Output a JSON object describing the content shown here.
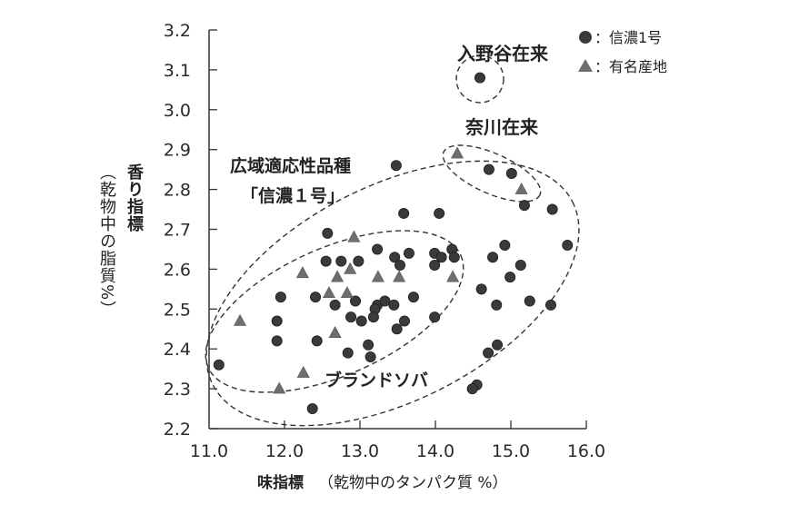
{
  "chart_data": {
    "type": "scatter",
    "title": "",
    "xlabel": "味指標",
    "xlabel_note": "（乾物中のタンパク質 %）",
    "ylabel": "香り指標",
    "ylabel_note": "（乾物中の脂質%）",
    "xlim": [
      11.0,
      16.0
    ],
    "ylim": [
      2.2,
      3.2
    ],
    "x_ticks": [
      "11.0",
      "12.0",
      "13.0",
      "14.0",
      "15.0",
      "16.0"
    ],
    "y_ticks": [
      "2.2",
      "2.3",
      "2.4",
      "2.5",
      "2.6",
      "2.7",
      "2.8",
      "2.9",
      "3.0",
      "3.1",
      "3.2"
    ],
    "grid": false,
    "legend_position": "top-right",
    "series": [
      {
        "name": "信濃1号",
        "marker": "circle",
        "color": "#3a3a3a",
        "points": [
          [
            14.59,
            3.08
          ],
          [
            13.48,
            2.86
          ],
          [
            14.71,
            2.85
          ],
          [
            15.01,
            2.84
          ],
          [
            15.18,
            2.76
          ],
          [
            15.55,
            2.75
          ],
          [
            13.58,
            2.74
          ],
          [
            14.05,
            2.74
          ],
          [
            12.57,
            2.69
          ],
          [
            15.75,
            2.66
          ],
          [
            14.92,
            2.66
          ],
          [
            13.23,
            2.65
          ],
          [
            13.65,
            2.64
          ],
          [
            14.22,
            2.65
          ],
          [
            13.99,
            2.64
          ],
          [
            14.08,
            2.63
          ],
          [
            14.25,
            2.63
          ],
          [
            13.99,
            2.61
          ],
          [
            13.46,
            2.63
          ],
          [
            13.53,
            2.61
          ],
          [
            14.76,
            2.63
          ],
          [
            12.55,
            2.62
          ],
          [
            12.75,
            2.62
          ],
          [
            12.98,
            2.62
          ],
          [
            15.13,
            2.61
          ],
          [
            14.99,
            2.58
          ],
          [
            11.95,
            2.53
          ],
          [
            12.41,
            2.53
          ],
          [
            13.71,
            2.53
          ],
          [
            14.61,
            2.55
          ],
          [
            12.94,
            2.52
          ],
          [
            12.67,
            2.51
          ],
          [
            13.23,
            2.51
          ],
          [
            13.33,
            2.52
          ],
          [
            13.45,
            2.51
          ],
          [
            13.2,
            2.5
          ],
          [
            14.81,
            2.51
          ],
          [
            15.25,
            2.52
          ],
          [
            15.53,
            2.51
          ],
          [
            12.88,
            2.48
          ],
          [
            13.02,
            2.47
          ],
          [
            13.18,
            2.48
          ],
          [
            13.59,
            2.47
          ],
          [
            13.99,
            2.48
          ],
          [
            11.9,
            2.47
          ],
          [
            13.49,
            2.45
          ],
          [
            11.9,
            2.42
          ],
          [
            12.43,
            2.42
          ],
          [
            13.11,
            2.41
          ],
          [
            14.82,
            2.41
          ],
          [
            14.7,
            2.39
          ],
          [
            12.84,
            2.39
          ],
          [
            13.14,
            2.38
          ],
          [
            11.13,
            2.36
          ],
          [
            14.55,
            2.31
          ],
          [
            14.49,
            2.3
          ],
          [
            12.37,
            2.25
          ]
        ]
      },
      {
        "name": "有名産地",
        "marker": "triangle",
        "color": "#6e6e6e",
        "points": [
          [
            14.29,
            2.89
          ],
          [
            15.14,
            2.8
          ],
          [
            12.92,
            2.68
          ],
          [
            12.24,
            2.59
          ],
          [
            12.87,
            2.6
          ],
          [
            12.7,
            2.58
          ],
          [
            13.24,
            2.58
          ],
          [
            13.52,
            2.58
          ],
          [
            14.23,
            2.58
          ],
          [
            12.83,
            2.54
          ],
          [
            12.59,
            2.54
          ],
          [
            11.41,
            2.47
          ],
          [
            12.67,
            2.44
          ],
          [
            12.25,
            2.34
          ],
          [
            11.93,
            2.3
          ]
        ]
      }
    ],
    "annotations": [
      {
        "text": "入野谷在来",
        "x": 14.59,
        "y": 3.14
      },
      {
        "text": "奈川在来",
        "x": 14.85,
        "y": 2.97
      },
      {
        "text": "広域適応性品種",
        "x": 12.4,
        "y": 2.83
      },
      {
        "text": "「信濃１号」",
        "x": 12.4,
        "y": 2.78
      },
      {
        "text": "ブランドソバ",
        "x": 13.0,
        "y": 2.34
      }
    ],
    "groups": [
      {
        "name": "広域適応性品種「信濃１号」",
        "shape": "dashed-ellipse"
      },
      {
        "name": "ブランドソバ",
        "shape": "dashed-ellipse"
      },
      {
        "name": "奈川在来",
        "shape": "dashed-ellipse"
      },
      {
        "name": "入野谷在来",
        "shape": "dashed-circle"
      }
    ]
  },
  "legend": {
    "items": [
      {
        "marker": "circle",
        "label": "：信濃1号"
      },
      {
        "marker": "triangle",
        "label": "：有名産地"
      }
    ]
  },
  "labels": {
    "iriya": "入野谷在来",
    "nagawa": "奈川在来",
    "wide_line1": "広域適応性品種",
    "wide_line2": "「信濃１号」",
    "brand": "ブランドソバ",
    "xlabel_main": "味指標",
    "xlabel_sub": "（乾物中のタンパク質 %）",
    "ylabel_main": "香り指標",
    "ylabel_sub": "（乾物中の脂質%）"
  }
}
